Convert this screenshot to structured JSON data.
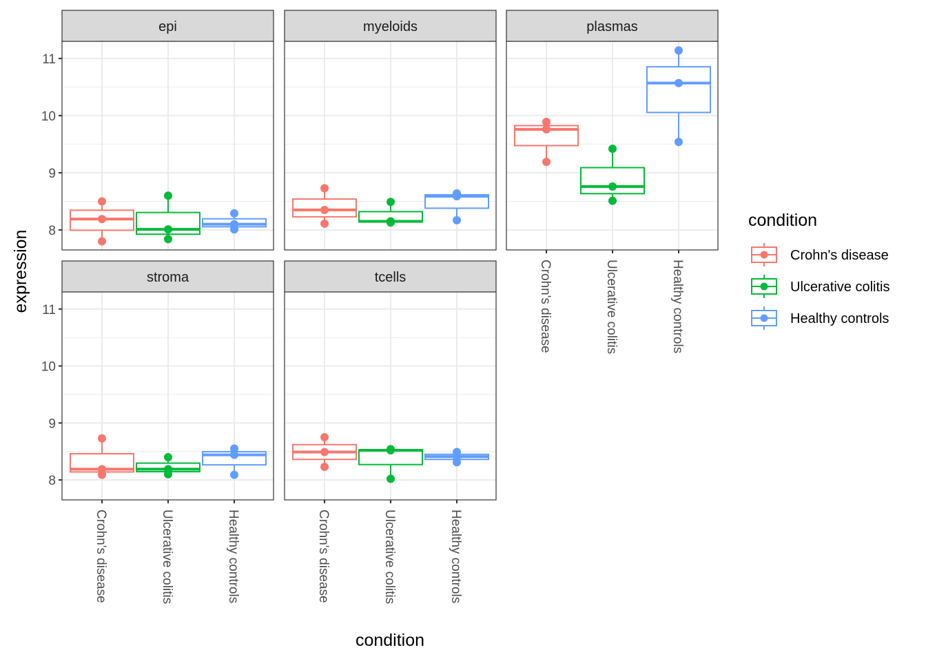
{
  "chart_data": {
    "type": "boxplot",
    "title": "",
    "xlabel": "condition",
    "ylabel": "expression",
    "ylim": [
      7.65,
      11.3
    ],
    "yticks": [
      8,
      9,
      10,
      11
    ],
    "ytick_labels": [
      "8",
      "9",
      "10",
      "11"
    ],
    "grid": true,
    "facet_layout": "3 columns x 2 rows",
    "categories": [
      "Crohn's disease",
      "Ulcerative colitis",
      "Healthy controls"
    ],
    "colors": {
      "Crohn's disease": "#F8766D",
      "Ulcerative colitis": "#00BA38",
      "Healthy controls": "#619CFF"
    },
    "legend": {
      "title": "condition",
      "position": "right",
      "entries": [
        "Crohn's disease",
        "Ulcerative colitis",
        "Healthy controls"
      ]
    },
    "facets": [
      {
        "name": "epi",
        "groups": [
          {
            "condition": "Crohn's disease",
            "points": [
              8.5,
              8.19,
              7.8
            ]
          },
          {
            "condition": "Ulcerative colitis",
            "points": [
              8.6,
              8.01,
              7.84
            ]
          },
          {
            "condition": "Healthy controls",
            "points": [
              8.29,
              8.1,
              8.01
            ]
          }
        ]
      },
      {
        "name": "myeloids",
        "groups": [
          {
            "condition": "Crohn's disease",
            "points": [
              8.73,
              8.35,
              8.11
            ]
          },
          {
            "condition": "Ulcerative colitis",
            "points": [
              8.49,
              8.15,
              8.13
            ]
          },
          {
            "condition": "Healthy controls",
            "points": [
              8.64,
              8.59,
              8.17
            ]
          }
        ]
      },
      {
        "name": "plasmas",
        "groups": [
          {
            "condition": "Crohn's disease",
            "points": [
              9.89,
              9.76,
              9.19
            ]
          },
          {
            "condition": "Ulcerative colitis",
            "points": [
              9.42,
              8.76,
              8.51
            ]
          },
          {
            "condition": "Healthy controls",
            "points": [
              11.14,
              10.57,
              9.54
            ]
          }
        ]
      },
      {
        "name": "stroma",
        "groups": [
          {
            "condition": "Crohn's disease",
            "points": [
              8.73,
              8.19,
              8.09
            ]
          },
          {
            "condition": "Ulcerative colitis",
            "points": [
              8.4,
              8.19,
              8.1
            ]
          },
          {
            "condition": "Healthy controls",
            "points": [
              8.55,
              8.44,
              8.09
            ]
          }
        ]
      },
      {
        "name": "tcells",
        "groups": [
          {
            "condition": "Crohn's disease",
            "points": [
              8.75,
              8.49,
              8.23
            ]
          },
          {
            "condition": "Ulcerative colitis",
            "points": [
              8.54,
              8.52,
              8.02
            ]
          },
          {
            "condition": "Healthy controls",
            "points": [
              8.49,
              8.41,
              8.31
            ]
          }
        ]
      }
    ]
  }
}
